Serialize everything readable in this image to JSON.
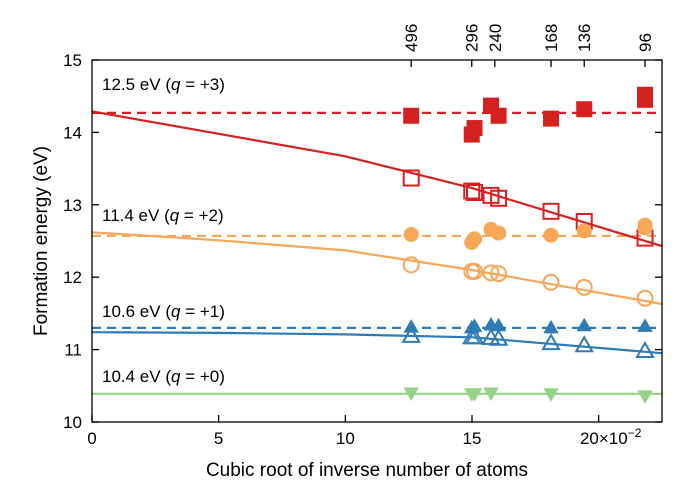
{
  "chart_data": {
    "type": "scatter",
    "xlabel": "Cubic root of inverse number of atoms",
    "ylabel": "Formation energy (eV)",
    "xlim": [
      0,
      22.5
    ],
    "ylim": [
      10,
      15
    ],
    "x_ticks": [
      0,
      5,
      10,
      15,
      20
    ],
    "x_tick_labels": [
      "0",
      "5",
      "10",
      "15",
      "20×10⁻²"
    ],
    "x_tick_label_last": "20×10",
    "x_exponent": "−2",
    "y_ticks": [
      10,
      11,
      12,
      13,
      14,
      15
    ],
    "y_tick_labels": [
      "10",
      "11",
      "12",
      "13",
      "14",
      "15"
    ],
    "top_axis": {
      "x": [
        12.6,
        14.99,
        15.9,
        18.12,
        19.43,
        21.83
      ],
      "labels": [
        "496",
        "296",
        "240",
        "168",
        "136",
        "96"
      ]
    },
    "grid": false,
    "legend": "none",
    "annotations": [
      {
        "label": "12.5 eV",
        "charge": "+3",
        "color": "#d52120"
      },
      {
        "label": "11.4 eV",
        "charge": "+2",
        "color": "#f6a757"
      },
      {
        "label": "10.6 eV",
        "charge": "+1",
        "color": "#2f7bb5"
      },
      {
        "label": "10.4 eV",
        "charge": "+0",
        "color": "#97d28a"
      }
    ],
    "series": [
      {
        "color": "#d52120",
        "marker": "square",
        "filled": true,
        "x": [
          12.6,
          14.99,
          15.1,
          15.75,
          16.05,
          18.12,
          19.43,
          21.83,
          21.83
        ],
        "y": [
          14.23,
          13.97,
          14.06,
          14.37,
          14.23,
          14.19,
          14.32,
          14.45,
          14.52
        ]
      },
      {
        "color": "#d52120",
        "marker": "square",
        "filled": false,
        "x": [
          12.6,
          14.99,
          15.1,
          15.75,
          16.05,
          18.12,
          19.43,
          21.83
        ],
        "y": [
          13.37,
          13.19,
          13.17,
          13.13,
          13.09,
          12.91,
          12.77,
          12.54
        ]
      },
      {
        "color": "#f6a757",
        "marker": "circle",
        "filled": true,
        "x": [
          12.6,
          14.99,
          15.1,
          15.75,
          16.05,
          18.12,
          19.43,
          21.83,
          21.83
        ],
        "y": [
          12.59,
          12.48,
          12.53,
          12.66,
          12.61,
          12.58,
          12.64,
          12.68,
          12.72
        ]
      },
      {
        "color": "#f6a757",
        "marker": "circle",
        "filled": false,
        "x": [
          12.6,
          14.99,
          15.1,
          15.75,
          16.05,
          18.12,
          19.43,
          21.83
        ],
        "y": [
          12.17,
          12.08,
          12.08,
          12.06,
          12.05,
          11.93,
          11.86,
          11.71
        ]
      },
      {
        "color": "#2f7bb5",
        "marker": "triangle-up",
        "filled": true,
        "x": [
          12.6,
          14.99,
          15.1,
          15.75,
          16.05,
          18.12,
          19.43,
          21.83
        ],
        "y": [
          11.31,
          11.3,
          11.32,
          11.34,
          11.33,
          11.3,
          11.33,
          11.32
        ]
      },
      {
        "color": "#2f7bb5",
        "marker": "triangle-up",
        "filled": false,
        "x": [
          12.6,
          14.99,
          15.1,
          15.75,
          16.05,
          18.12,
          19.43,
          21.83
        ],
        "y": [
          11.19,
          11.17,
          11.17,
          11.16,
          11.15,
          11.09,
          11.06,
          10.98
        ]
      },
      {
        "color": "#97d28a",
        "marker": "triangle-down",
        "filled": true,
        "x": [
          12.6,
          14.99,
          15.1,
          15.75,
          18.12,
          21.83
        ],
        "y": [
          10.4,
          10.39,
          10.39,
          10.4,
          10.39,
          10.36
        ]
      }
    ],
    "fit_curves": [
      {
        "color": "#d52120",
        "x": [
          0,
          5,
          10,
          15,
          22.5
        ],
        "y": [
          14.29,
          13.98,
          13.67,
          13.23,
          12.43
        ]
      },
      {
        "color": "#f6a757",
        "x": [
          0,
          5,
          10,
          15,
          22.5
        ],
        "y": [
          12.62,
          12.51,
          12.37,
          12.1,
          11.63
        ]
      },
      {
        "color": "#2f7bb5",
        "x": [
          0,
          5,
          10,
          15,
          22.5
        ],
        "y": [
          11.24,
          11.23,
          11.21,
          11.17,
          10.95
        ]
      },
      {
        "color": "#97d28a",
        "x": [
          0,
          22.5
        ],
        "y": [
          10.39,
          10.39
        ]
      }
    ],
    "reference_lines": [
      {
        "color": "#d52120",
        "y": 14.27
      },
      {
        "color": "#f6a757",
        "y": 12.57
      },
      {
        "color": "#2f7bb5",
        "y": 11.3
      }
    ]
  }
}
